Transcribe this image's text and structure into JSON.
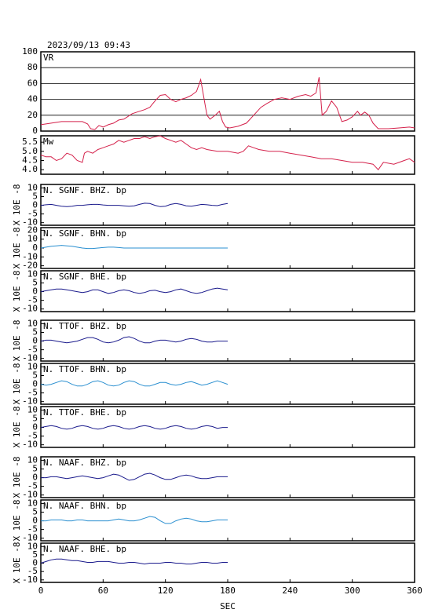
{
  "chart_data": [
    {
      "type": "line",
      "title": "2023/09/13 09:43",
      "label": "VR",
      "color": "#d4204a",
      "grid": true,
      "x": [
        0,
        10,
        20,
        30,
        40,
        45,
        48,
        52,
        56,
        60,
        65,
        70,
        75,
        80,
        88,
        95,
        100,
        105,
        110,
        115,
        120,
        125,
        130,
        135,
        140,
        145,
        150,
        154,
        158,
        160,
        163,
        168,
        172,
        175,
        178,
        182,
        190,
        198,
        205,
        212,
        218,
        225,
        232,
        240,
        248,
        255,
        260,
        265,
        268,
        271,
        275,
        280,
        285,
        290,
        295,
        300,
        305,
        308,
        312,
        316,
        320,
        325,
        335,
        345,
        355,
        360
      ],
      "values": [
        8,
        10,
        12,
        12,
        12,
        9,
        3,
        2,
        7,
        5,
        8,
        10,
        14,
        15,
        22,
        25,
        27,
        30,
        38,
        45,
        46,
        40,
        37,
        40,
        42,
        45,
        50,
        65,
        35,
        20,
        15,
        20,
        25,
        12,
        5,
        4,
        6,
        10,
        20,
        30,
        35,
        40,
        42,
        40,
        44,
        46,
        44,
        48,
        68,
        20,
        25,
        38,
        30,
        12,
        14,
        18,
        25,
        20,
        24,
        20,
        10,
        3,
        3,
        4,
        5,
        4
      ],
      "xlim": [
        0,
        360
      ],
      "ylim": [
        0,
        100
      ],
      "yticks": [
        0,
        20,
        40,
        60,
        80,
        100
      ]
    },
    {
      "type": "line",
      "label": "Mw",
      "color": "#d4204a",
      "x": [
        0,
        5,
        10,
        15,
        20,
        25,
        30,
        35,
        40,
        42,
        45,
        50,
        55,
        60,
        65,
        70,
        75,
        80,
        85,
        90,
        95,
        100,
        105,
        110,
        115,
        120,
        125,
        130,
        135,
        140,
        145,
        150,
        155,
        160,
        170,
        180,
        190,
        195,
        200,
        205,
        210,
        220,
        230,
        240,
        250,
        260,
        270,
        280,
        290,
        300,
        310,
        320,
        325,
        330,
        340,
        350,
        355,
        360
      ],
      "values": [
        4.8,
        4.7,
        4.7,
        4.5,
        4.6,
        4.9,
        4.8,
        4.5,
        4.4,
        4.9,
        5.0,
        4.9,
        5.1,
        5.2,
        5.3,
        5.4,
        5.6,
        5.5,
        5.6,
        5.7,
        5.7,
        5.8,
        5.7,
        5.8,
        5.85,
        5.7,
        5.6,
        5.5,
        5.6,
        5.4,
        5.2,
        5.1,
        5.2,
        5.1,
        5.0,
        5.0,
        4.9,
        5.0,
        5.3,
        5.2,
        5.1,
        5.0,
        5.0,
        4.9,
        4.8,
        4.7,
        4.6,
        4.6,
        4.5,
        4.4,
        4.4,
        4.3,
        4.0,
        4.4,
        4.3,
        4.5,
        4.6,
        4.4
      ],
      "xlim": [
        0,
        360
      ],
      "ylim": [
        3.75,
        5.85
      ],
      "yticks": [
        {
          "value": 4,
          "label": "4.0"
        },
        4.5,
        {
          "value": 5,
          "label": "5.0"
        },
        5.5
      ]
    },
    {
      "type": "waveform",
      "xlim": [
        0,
        360
      ],
      "xticks": [
        0,
        60,
        120,
        180,
        240,
        300,
        360
      ],
      "xlabel": "SEC",
      "ylabel": "X 10E -8",
      "x": [
        0,
        5,
        10,
        15,
        20,
        25,
        30,
        35,
        40,
        45,
        50,
        55,
        60,
        65,
        70,
        75,
        80,
        85,
        90,
        95,
        100,
        105,
        110,
        115,
        120,
        125,
        130,
        135,
        140,
        145,
        150,
        155,
        160,
        165,
        170,
        175,
        180
      ],
      "series": [
        {
          "name": "N. SGNF. BHZ. bp",
          "color": "#1a1a8c",
          "ylim": [
            -11.5,
            12
          ],
          "yticks": [
            10,
            5,
            0,
            -5,
            -10
          ],
          "values": [
            0,
            0.3,
            0.5,
            0,
            -0.5,
            -0.8,
            -0.5,
            0,
            0,
            0.3,
            0.5,
            0.5,
            0.2,
            0,
            0,
            0,
            -0.3,
            -0.5,
            -0.3,
            0.5,
            1.2,
            1,
            0,
            -0.8,
            -0.5,
            0.5,
            1,
            0.5,
            -0.3,
            -0.5,
            0,
            0.5,
            0.3,
            0,
            -0.2,
            0.5,
            1
          ]
        },
        {
          "name": "N. SGNF. BHN. bp",
          "color": "#2a8fd0",
          "ylim": [
            -23,
            23
          ],
          "yticks": [
            20,
            10,
            0,
            -10,
            -20
          ],
          "values": [
            0,
            1,
            2,
            2.5,
            3,
            2.5,
            2,
            1,
            0,
            -0.5,
            -0.5,
            0,
            0.5,
            1,
            1,
            0.5,
            0,
            0,
            0,
            0,
            0,
            0,
            0,
            0,
            0,
            0,
            0,
            0,
            0,
            0,
            0,
            0,
            0,
            0,
            0,
            0,
            0
          ]
        },
        {
          "name": "N. SGNF. BHE. bp",
          "color": "#1a1a8c",
          "ylim": [
            -11.5,
            12
          ],
          "yticks": [
            10,
            5,
            0,
            -5,
            -10
          ],
          "values": [
            0,
            0.5,
            1,
            1.5,
            1.5,
            1,
            0.5,
            0,
            -0.5,
            0,
            1,
            1,
            0,
            -1,
            -0.5,
            0.5,
            1,
            0.5,
            -0.5,
            -1,
            -0.5,
            0.5,
            0.8,
            0,
            -0.5,
            0,
            1,
            1.5,
            0.5,
            -0.5,
            -1,
            -0.5,
            0.5,
            1.5,
            2,
            1.5,
            1
          ]
        },
        {
          "name": "N. TTOF. BHZ. bp",
          "color": "#1a1a8c",
          "ylim": [
            -11.5,
            12
          ],
          "yticks": [
            10,
            5,
            0,
            -5,
            -10
          ],
          "values": [
            0,
            0.5,
            0.5,
            0,
            -0.5,
            -1,
            -0.5,
            0,
            1,
            2,
            2,
            1,
            -0.5,
            -1,
            -0.5,
            0.5,
            2,
            2.5,
            1.5,
            0,
            -1,
            -1,
            0,
            0.5,
            0.5,
            0,
            -0.5,
            0,
            1,
            1.5,
            1,
            0,
            -0.5,
            -0.5,
            0,
            0,
            0
          ]
        },
        {
          "name": "N. TTOF. BHN. bp",
          "color": "#2a8fd0",
          "ylim": [
            -11.5,
            12
          ],
          "yticks": [
            10,
            5,
            0,
            -5,
            -10
          ],
          "values": [
            0,
            -0.5,
            0,
            1,
            2,
            1.5,
            0,
            -1,
            -1,
            0,
            1.5,
            2,
            1,
            -0.5,
            -1,
            -0.5,
            1,
            2,
            1.5,
            0,
            -1,
            -1,
            0,
            1,
            1,
            0,
            -0.5,
            0,
            1,
            1.5,
            0.5,
            -0.5,
            0,
            1,
            2,
            1,
            0
          ]
        },
        {
          "name": "N. TTOF. BHE. bp",
          "color": "#1a1a8c",
          "ylim": [
            -11.5,
            12
          ],
          "yticks": [
            10,
            5,
            0,
            -5,
            -10
          ],
          "values": [
            0,
            0.5,
            1,
            0.5,
            -0.5,
            -1,
            -0.5,
            0.5,
            1,
            0.5,
            -0.5,
            -1,
            -0.5,
            0.5,
            1,
            0.5,
            -0.5,
            -1,
            -0.5,
            0.5,
            1,
            0.5,
            -0.5,
            -1,
            -0.5,
            0.5,
            1,
            0.5,
            -0.5,
            -1,
            -0.5,
            0.5,
            1,
            0.5,
            -0.5,
            0,
            0
          ]
        },
        {
          "name": "N. NAAF. BHZ. bp",
          "color": "#1a1a8c",
          "ylim": [
            -11.5,
            12
          ],
          "yticks": [
            10,
            5,
            0,
            -5,
            -10
          ],
          "values": [
            0,
            0,
            0.5,
            0.5,
            0,
            -0.5,
            0,
            0.5,
            1,
            0.5,
            0,
            -0.5,
            0,
            1,
            2,
            1.5,
            0,
            -1.5,
            -1,
            0.5,
            2,
            2.5,
            1.5,
            0,
            -1,
            -1,
            0,
            1,
            1.5,
            1,
            0,
            -0.5,
            -0.5,
            0,
            0.5,
            0.5,
            0.5
          ]
        },
        {
          "name": "N. NAAF. BHN. bp",
          "color": "#2a8fd0",
          "ylim": [
            -11.5,
            12
          ],
          "yticks": [
            10,
            5,
            0,
            -5,
            -10
          ],
          "values": [
            0,
            0,
            0.5,
            0.5,
            0.5,
            0,
            0,
            0.5,
            0.5,
            0,
            0,
            0,
            0,
            0,
            0.5,
            1,
            0.5,
            0,
            0,
            0.5,
            1.5,
            2.5,
            2,
            0,
            -1.5,
            -1.5,
            0,
            1,
            1.5,
            1,
            0,
            -0.5,
            -0.5,
            0,
            0.5,
            0.5,
            0.5
          ]
        },
        {
          "name": "N. NAAF. BHE. bp",
          "color": "#1a1a8c",
          "ylim": [
            -11.5,
            12
          ],
          "yticks": [
            10,
            5,
            0,
            -5,
            -10
          ],
          "values": [
            0,
            1,
            2,
            2.5,
            2.5,
            2,
            1.5,
            1.5,
            1,
            0.5,
            0.5,
            1,
            1,
            1,
            0.5,
            0,
            0,
            0.5,
            0.5,
            0,
            -0.5,
            0,
            0,
            0,
            0.5,
            0.5,
            0,
            0,
            -0.5,
            -0.5,
            0,
            0.5,
            0.5,
            0,
            0,
            0.5,
            0.5
          ]
        }
      ]
    }
  ]
}
